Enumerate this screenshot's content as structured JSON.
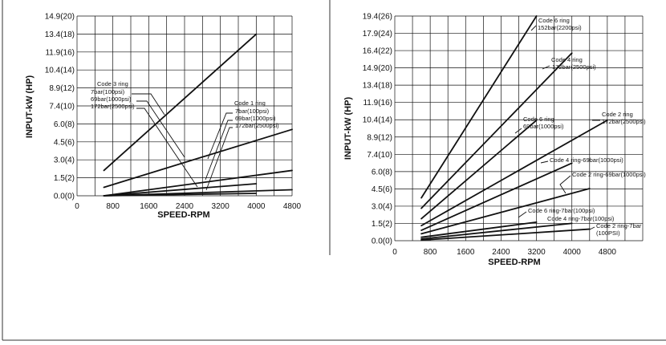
{
  "chart_data": [
    {
      "type": "line",
      "title": "",
      "xlabel": "SPEED-RPM",
      "ylabel": "INPUT-kW (HP)",
      "xlim": [
        0,
        4800
      ],
      "ylim": [
        0,
        14.9
      ],
      "x_ticks": [
        "0",
        "800",
        "1600",
        "2400",
        "3200",
        "4000",
        "4800"
      ],
      "y_ticks": [
        "0.0(0)",
        "1.5(2)",
        "3.0(4)",
        "4.5(6)",
        "6.0(8)",
        "7.4(10)",
        "8.9(12)",
        "10.4(14)",
        "11.9(16)",
        "13.4(18)",
        "14.9(20)"
      ],
      "grid": true,
      "annotations": [
        {
          "lines": [
            "Code 3 ring",
            "7bar(100psi)",
            "69bar(1000psi)",
            "172bar(2500psi)"
          ]
        },
        {
          "lines": [
            "Code 1 ring",
            "7bar(100psi)",
            "69bar(1000psi)",
            "172bar(2500psi)"
          ]
        }
      ],
      "series": [
        {
          "x": [
            600,
            4000
          ],
          "y": [
            2.1,
            13.4
          ]
        },
        {
          "x": [
            600,
            4800
          ],
          "y": [
            0.7,
            5.5
          ]
        },
        {
          "x": [
            600,
            4800
          ],
          "y": [
            0.0,
            2.1
          ]
        },
        {
          "x": [
            600,
            4000
          ],
          "y": [
            0.0,
            1.0
          ]
        },
        {
          "x": [
            600,
            4800
          ],
          "y": [
            0.0,
            0.5
          ]
        },
        {
          "x": [
            600,
            4000
          ],
          "y": [
            0.0,
            0.2
          ]
        }
      ]
    },
    {
      "type": "line",
      "title": "",
      "xlabel": "SPEED-RPM",
      "ylabel": "INPUT-kW (HP)",
      "xlim": [
        0,
        5600
      ],
      "ylim": [
        0,
        19.4
      ],
      "x_ticks": [
        "0",
        "800",
        "1600",
        "2400",
        "3200",
        "4000",
        "4800"
      ],
      "y_ticks": [
        "0.0(0)",
        "1.5(2)",
        "3.0(4)",
        "4.5(6)",
        "6.0(8)",
        "7.4(10)",
        "8.9(12)",
        "10.4(14)",
        "11.9(16)",
        "13.4(18)",
        "14.9(20)",
        "16.4(22)",
        "17.9(24)",
        "19.4(26)"
      ],
      "grid": true,
      "annotations": [
        {
          "lines": [
            "Code 6 ring",
            "152bar(2200psi)"
          ]
        },
        {
          "lines": [
            "Code 4 ring",
            "172bar(2500psi)"
          ]
        },
        {
          "lines": [
            "Code 6 ring",
            "69bar(1000psi)"
          ]
        },
        {
          "lines": [
            "Code 2 ring",
            "172bar(2500psi)"
          ]
        },
        {
          "lines": [
            "Code 4 ring-69bar(1000psi)"
          ]
        },
        {
          "lines": [
            "Code 2 ring-69bar(1000psi)"
          ]
        },
        {
          "lines": [
            "Code 6 ring-7bar(100psi)"
          ]
        },
        {
          "lines": [
            "Code 4 ring-7bar(100psi)"
          ]
        },
        {
          "lines": [
            "Code 2 ring-7bar",
            "(100PSI)"
          ]
        }
      ],
      "series": [
        {
          "x": [
            600,
            3200
          ],
          "y": [
            3.7,
            19.4
          ]
        },
        {
          "x": [
            600,
            4000
          ],
          "y": [
            2.8,
            16.2
          ]
        },
        {
          "x": [
            600,
            3200
          ],
          "y": [
            1.9,
            10.4
          ]
        },
        {
          "x": [
            600,
            4800
          ],
          "y": [
            1.3,
            10.4
          ]
        },
        {
          "x": [
            600,
            4000
          ],
          "y": [
            0.9,
            6.7
          ]
        },
        {
          "x": [
            600,
            4400
          ],
          "y": [
            0.6,
            4.5
          ]
        },
        {
          "x": [
            600,
            3200
          ],
          "y": [
            0.3,
            1.6
          ]
        },
        {
          "x": [
            600,
            4000
          ],
          "y": [
            0.15,
            1.5
          ]
        },
        {
          "x": [
            600,
            4400
          ],
          "y": [
            0.05,
            1.0
          ]
        }
      ]
    }
  ]
}
